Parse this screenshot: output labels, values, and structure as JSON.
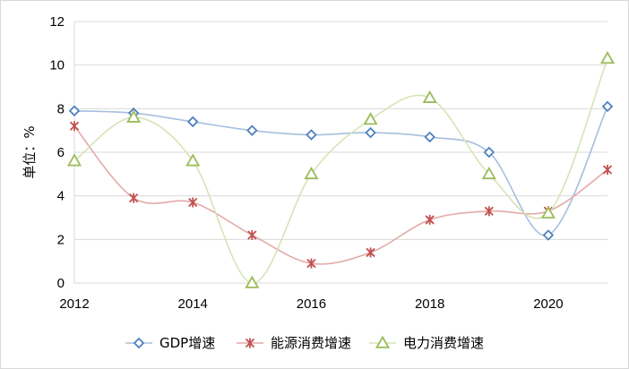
{
  "chart_data": {
    "type": "line",
    "title": "",
    "xlabel": "",
    "ylabel": "单位：%",
    "xlim": [
      2012,
      2021
    ],
    "ylim": [
      0,
      12
    ],
    "x_ticks": [
      2012,
      2014,
      2016,
      2018,
      2020
    ],
    "y_ticks": [
      0,
      2,
      4,
      6,
      8,
      10,
      12
    ],
    "grid": "horizontal",
    "legend": "bottom",
    "x": [
      2012,
      2013,
      2014,
      2015,
      2016,
      2017,
      2018,
      2019,
      2020,
      2021
    ],
    "series": [
      {
        "name": "GDP增速",
        "color": "#4f81bd",
        "line_color": "#a7bfde",
        "marker": "diamond",
        "values": [
          7.9,
          7.8,
          7.4,
          7.0,
          6.8,
          6.9,
          6.7,
          6.0,
          2.2,
          8.1
        ]
      },
      {
        "name": "能源消费增速",
        "color": "#c0504d",
        "line_color": "#e4a9a7",
        "marker": "x",
        "values": [
          7.2,
          3.9,
          3.7,
          2.2,
          0.9,
          1.4,
          2.9,
          3.3,
          3.3,
          5.2
        ]
      },
      {
        "name": "电力消费增速",
        "color": "#9bbb59",
        "line_color": "#d6e4b6",
        "marker": "triangle",
        "values": [
          5.6,
          7.6,
          5.6,
          0.0,
          5.0,
          7.5,
          8.5,
          5.0,
          3.2,
          10.3
        ]
      }
    ]
  }
}
